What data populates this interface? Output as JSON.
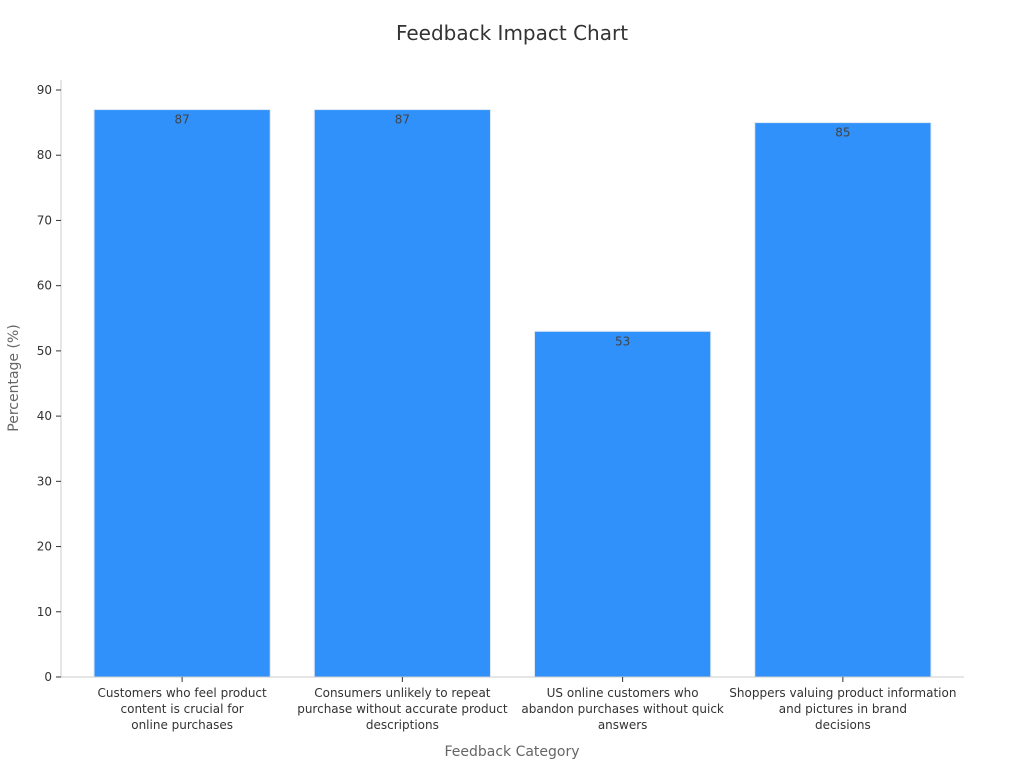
{
  "chart_data": {
    "type": "bar",
    "title": "Feedback Impact Chart",
    "xlabel": "Feedback Category",
    "ylabel": "Percentage (%)",
    "ylim": [
      0,
      90
    ],
    "yticks": [
      0,
      10,
      20,
      30,
      40,
      50,
      60,
      70,
      80,
      90
    ],
    "categories": [
      [
        "Customers who feel product",
        "content is crucial for",
        "online purchases"
      ],
      [
        "Consumers unlikely to repeat",
        "purchase without accurate product",
        "descriptions"
      ],
      [
        "US online customers who",
        "abandon purchases without quick",
        "answers"
      ],
      [
        "Shoppers valuing product information",
        "and pictures in brand",
        "decisions"
      ]
    ],
    "values": [
      87,
      87,
      53,
      85
    ],
    "data_labels": [
      "87",
      "87",
      "53",
      "85"
    ],
    "grid": false,
    "legend": "none",
    "bar_color": "#2f91f9"
  }
}
